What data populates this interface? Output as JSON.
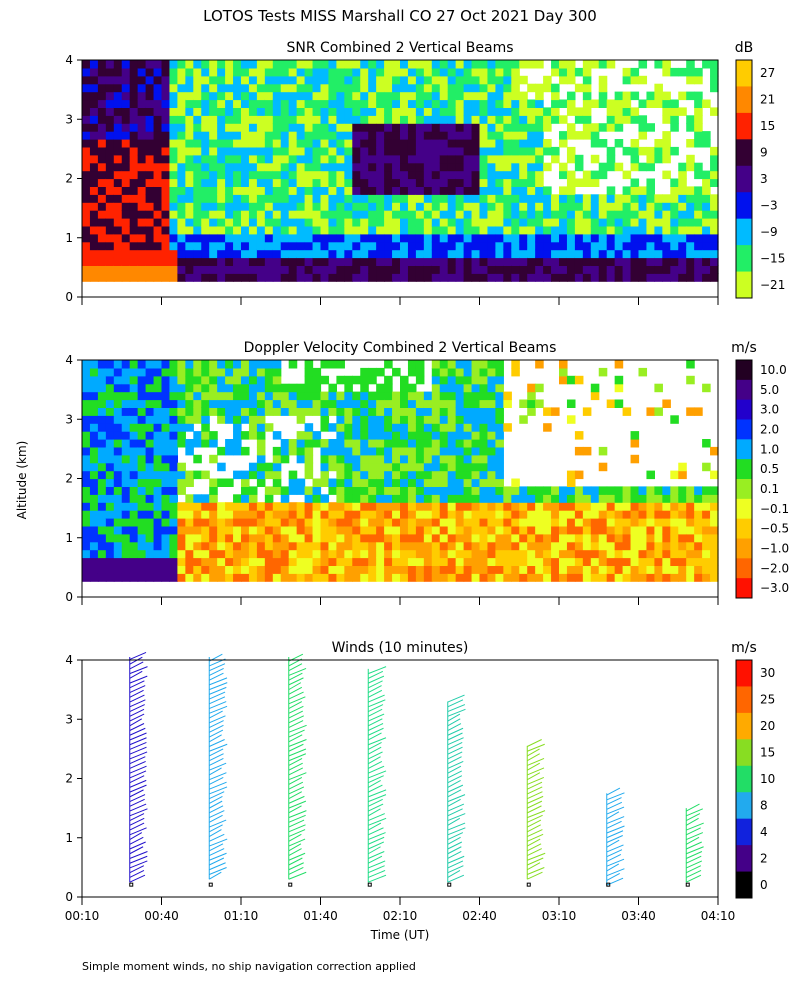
{
  "title": "LOTOS Tests MISS Marshall CO  27 Oct 2021 Day 300",
  "footnote": "Simple moment winds, no ship navigation correction applied",
  "shared_ylabel": "Altitude (km)",
  "chart_data": [
    {
      "type": "heatmap",
      "title": "SNR Combined 2 Vertical Beams",
      "units": "dB",
      "ylim": [
        0,
        4
      ],
      "yticks": [
        "0",
        "1",
        "2",
        "3",
        "4"
      ],
      "colorbar": {
        "labels": [
          "27",
          "21",
          "15",
          "9",
          "3",
          "−3",
          "−9",
          "−15",
          "−21"
        ],
        "colors": [
          "#ffcc00",
          "#ff8800",
          "#ff2200",
          "#330033",
          "#440088",
          "#0011ee",
          "#00bbff",
          "#22ee66",
          "#ccff22"
        ]
      }
    },
    {
      "type": "heatmap",
      "title": "Doppler Velocity Combined 2 Vertical Beams",
      "units": "m/s",
      "ylim": [
        0,
        4
      ],
      "yticks": [
        "0",
        "1",
        "2",
        "3",
        "4"
      ],
      "colorbar": {
        "labels": [
          "10.0",
          "5.0",
          "3.0",
          "2.0",
          "1.0",
          "0.5",
          "0.1",
          "−0.1",
          "−0.5",
          "−1.0",
          "−2.0",
          "−3.0"
        ],
        "colors": [
          "#220022",
          "#440088",
          "#2200cc",
          "#0033ff",
          "#00aaff",
          "#22dd22",
          "#99ee22",
          "#eeff22",
          "#ffcc00",
          "#ffa000",
          "#ff6600",
          "#ff1100"
        ]
      }
    },
    {
      "type": "wind_barbs",
      "title": "Winds (10 minutes)",
      "units": "m/s",
      "ylim": [
        0,
        4
      ],
      "yticks": [
        "0",
        "1",
        "2",
        "3",
        "4"
      ],
      "xlabel": "Time (UT)",
      "xticks": [
        "00:10",
        "00:40",
        "01:10",
        "01:40",
        "02:10",
        "02:40",
        "03:10",
        "03:40",
        "04:10"
      ],
      "colorbar": {
        "labels": [
          "30",
          "25",
          "20",
          "15",
          "10",
          "8",
          "4",
          "2",
          "0"
        ],
        "colors": [
          "#ff1100",
          "#ff6600",
          "#ffaa00",
          "#88dd22",
          "#22dd66",
          "#22aaee",
          "#1122dd",
          "#440088",
          "#000000"
        ]
      },
      "profiles": [
        {
          "time_index": 0.5,
          "top_km": 4.05,
          "bottom_km": 0.25,
          "color": "#2211cc"
        },
        {
          "time_index": 1.5,
          "top_km": 4.05,
          "bottom_km": 0.3,
          "color": "#22aaee"
        },
        {
          "time_index": 2.5,
          "top_km": 4.05,
          "bottom_km": 0.3,
          "color": "#22dd66"
        },
        {
          "time_index": 3.5,
          "top_km": 3.85,
          "bottom_km": 0.25,
          "color": "#22dd88"
        },
        {
          "time_index": 4.5,
          "top_km": 3.3,
          "bottom_km": 0.25,
          "color": "#22ccaa"
        },
        {
          "time_index": 5.5,
          "top_km": 2.55,
          "bottom_km": 0.3,
          "color": "#88dd22"
        },
        {
          "time_index": 6.5,
          "top_km": 1.75,
          "bottom_km": 0.2,
          "color": "#22aaee"
        },
        {
          "time_index": 7.5,
          "top_km": 1.5,
          "bottom_km": 0.25,
          "color": "#22dd66"
        }
      ]
    }
  ]
}
